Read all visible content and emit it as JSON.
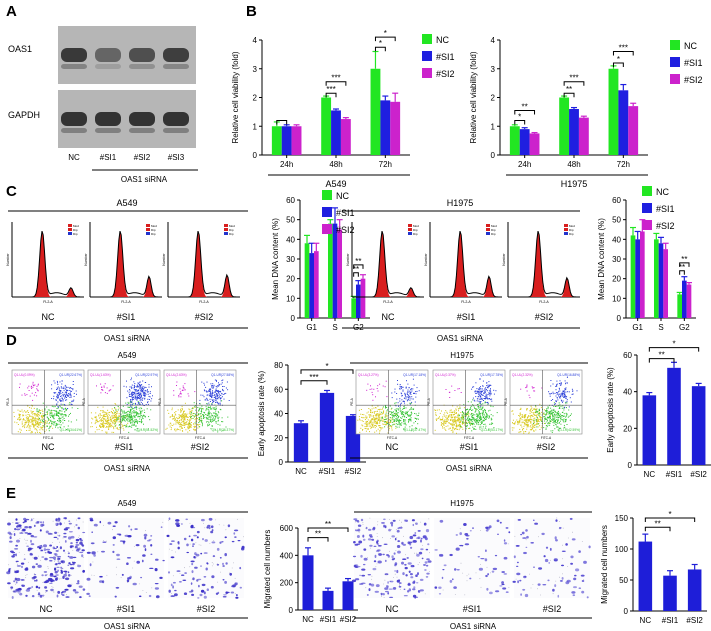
{
  "colors": {
    "nc": "#22e622",
    "si1": "#1f1fe0",
    "si2": "#cc22cc",
    "red": "#d81e1e",
    "blot_bg": "#b6b6b6",
    "bar_blue": "#1e1ed8"
  },
  "panel_letters": [
    "A",
    "B",
    "C",
    "D",
    "E"
  ],
  "panel_a": {
    "bands": [
      "OAS1",
      "GAPDH"
    ],
    "lanes": [
      "NC",
      "#SI1",
      "#SI2",
      "#SI3"
    ],
    "group_label": "OAS1 siRNA",
    "oas1_intensity": [
      0.85,
      0.45,
      0.65,
      0.8
    ],
    "gapdh_intensity": [
      0.9,
      0.9,
      0.9,
      0.9
    ]
  },
  "chart_data": [
    {
      "id": "B-A549",
      "type": "bar",
      "categories": [
        "24h",
        "48h",
        "72h"
      ],
      "xlabel": "A549",
      "ylabel": "Relative cell viability (fold)",
      "ylim": [
        0,
        4
      ],
      "yticks": [
        "0",
        "1",
        "2",
        "3",
        "4"
      ],
      "series": [
        {
          "name": "NC",
          "values": [
            1.0,
            2.0,
            3.0
          ],
          "errors": [
            0.15,
            0.05,
            0.6
          ]
        },
        {
          "name": "#SI1",
          "values": [
            1.0,
            1.55,
            1.9
          ],
          "errors": [
            0.05,
            0.05,
            0.15
          ]
        },
        {
          "name": "#SI2",
          "values": [
            1.0,
            1.25,
            1.85
          ],
          "errors": [
            0.05,
            0.05,
            0.3
          ]
        }
      ],
      "legend": [
        "NC",
        "#SI1",
        "#SI2"
      ],
      "significance": [
        {
          "cat": 0,
          "a": 0,
          "b": 1,
          "label": "",
          "y": 1.2
        },
        {
          "cat": 1,
          "a": 0,
          "b": 1,
          "label": "***",
          "y": 2.15
        },
        {
          "cat": 1,
          "a": 0,
          "b": 2,
          "label": "***",
          "y": 2.55
        },
        {
          "cat": 2,
          "a": 0,
          "b": 1,
          "label": "*",
          "y": 3.75
        },
        {
          "cat": 2,
          "a": 0,
          "b": 2,
          "label": "*",
          "y": 4.1
        }
      ]
    },
    {
      "id": "B-H1975",
      "type": "bar",
      "categories": [
        "24h",
        "48h",
        "72h"
      ],
      "xlabel": "H1975",
      "ylabel": "Relative cell viability (fold)",
      "ylim": [
        0,
        4
      ],
      "yticks": [
        "0",
        "1",
        "2",
        "3",
        "4"
      ],
      "series": [
        {
          "name": "NC",
          "values": [
            1.0,
            2.0,
            3.0
          ],
          "errors": [
            0.05,
            0.05,
            0.1
          ]
        },
        {
          "name": "#SI1",
          "values": [
            0.9,
            1.6,
            2.25
          ],
          "errors": [
            0.05,
            0.05,
            0.2
          ]
        },
        {
          "name": "#SI2",
          "values": [
            0.75,
            1.3,
            1.7
          ],
          "errors": [
            0.03,
            0.05,
            0.1
          ]
        }
      ],
      "legend": [
        "NC",
        "#SI1",
        "#SI2"
      ],
      "significance": [
        {
          "cat": 0,
          "a": 0,
          "b": 1,
          "label": "*",
          "y": 1.2
        },
        {
          "cat": 0,
          "a": 0,
          "b": 2,
          "label": "**",
          "y": 1.55
        },
        {
          "cat": 1,
          "a": 0,
          "b": 1,
          "label": "**",
          "y": 2.15
        },
        {
          "cat": 1,
          "a": 0,
          "b": 2,
          "label": "***",
          "y": 2.55
        },
        {
          "cat": 2,
          "a": 0,
          "b": 1,
          "label": "*",
          "y": 3.2
        },
        {
          "cat": 2,
          "a": 0,
          "b": 2,
          "label": "***",
          "y": 3.6
        }
      ]
    },
    {
      "id": "C-A549",
      "type": "bar",
      "categories": [
        "G1",
        "S",
        "G2"
      ],
      "xlabel": "",
      "ylabel": "Mean DNA content (%)",
      "ylim": [
        0,
        60
      ],
      "yticks": [
        "0",
        "10",
        "20",
        "30",
        "40",
        "50",
        "60"
      ],
      "series": [
        {
          "name": "NC",
          "values": [
            38,
            48,
            10
          ],
          "errors": [
            4,
            2,
            1
          ]
        },
        {
          "name": "#SI1",
          "values": [
            33,
            48,
            17
          ],
          "errors": [
            5,
            8,
            2
          ]
        },
        {
          "name": "#SI2",
          "values": [
            34,
            45,
            20
          ],
          "errors": [
            4,
            5,
            2
          ]
        }
      ],
      "legend": [
        "NC",
        "#SI1",
        "#SI2"
      ],
      "significance": [
        {
          "cat": 2,
          "a": 0,
          "b": 1,
          "label": "**",
          "y": 23
        },
        {
          "cat": 2,
          "a": 0,
          "b": 2,
          "label": "**",
          "y": 27
        }
      ]
    },
    {
      "id": "C-H1975",
      "type": "bar",
      "categories": [
        "G1",
        "S",
        "G2"
      ],
      "xlabel": "",
      "ylabel": "Mean DNA content (%)",
      "ylim": [
        0,
        60
      ],
      "yticks": [
        "0",
        "10",
        "20",
        "30",
        "40",
        "50",
        "60"
      ],
      "series": [
        {
          "name": "NC",
          "values": [
            42,
            40,
            12
          ],
          "errors": [
            4,
            3,
            1
          ]
        },
        {
          "name": "#SI1",
          "values": [
            40,
            38,
            19
          ],
          "errors": [
            4,
            3,
            2
          ]
        },
        {
          "name": "#SI2",
          "values": [
            44,
            35,
            17
          ],
          "errors": [
            6,
            3,
            1
          ]
        }
      ],
      "legend": [
        "NC",
        "#SI1",
        "#SI2"
      ],
      "significance": [
        {
          "cat": 2,
          "a": 0,
          "b": 1,
          "label": "**",
          "y": 24
        },
        {
          "cat": 2,
          "a": 0,
          "b": 2,
          "label": "**",
          "y": 28
        }
      ]
    },
    {
      "id": "D-A549",
      "type": "bar",
      "categories": [
        "NC",
        "#SI1",
        "#SI2"
      ],
      "ylabel": "Early apoptosis rate (%)",
      "ylim": [
        0,
        80
      ],
      "yticks": [
        "0",
        "20",
        "40",
        "60",
        "80"
      ],
      "values": [
        32,
        57,
        38
      ],
      "errors": [
        2,
        2,
        1
      ],
      "significance": [
        {
          "a": 0,
          "b": 1,
          "label": "***",
          "y": 67
        },
        {
          "a": 0,
          "b": 2,
          "label": "*",
          "y": 76
        }
      ]
    },
    {
      "id": "D-H1975",
      "type": "bar",
      "categories": [
        "NC",
        "#SI1",
        "#SI2"
      ],
      "ylabel": "Early apoptosis rate (%)",
      "ylim": [
        0,
        60
      ],
      "yticks": [
        "0",
        "20",
        "40",
        "60"
      ],
      "values": [
        38,
        53,
        43
      ],
      "errors": [
        1.5,
        3,
        1.5
      ],
      "significance": [
        {
          "a": 0,
          "b": 1,
          "label": "**",
          "y": 58
        },
        {
          "a": 0,
          "b": 2,
          "label": "*",
          "y": 64
        }
      ]
    },
    {
      "id": "E-A549",
      "type": "bar",
      "categories": [
        "NC",
        "#SI1",
        "#SI2"
      ],
      "ylabel": "Migrated cell numbers",
      "ylim": [
        0,
        600
      ],
      "yticks": [
        "0",
        "200",
        "400",
        "600"
      ],
      "values": [
        400,
        140,
        210
      ],
      "errors": [
        55,
        20,
        20
      ],
      "significance": [
        {
          "a": 0,
          "b": 1,
          "label": "**",
          "y": 530
        },
        {
          "a": 0,
          "b": 2,
          "label": "**",
          "y": 600
        }
      ]
    },
    {
      "id": "E-H1975",
      "type": "bar",
      "categories": [
        "NC",
        "#SI1",
        "#SI2"
      ],
      "ylabel": "Migrated cell numbers",
      "ylim": [
        0,
        150
      ],
      "yticks": [
        "0",
        "50",
        "100",
        "150"
      ],
      "values": [
        112,
        57,
        67
      ],
      "errors": [
        12,
        8,
        8
      ],
      "significance": [
        {
          "a": 0,
          "b": 1,
          "label": "**",
          "y": 135
        },
        {
          "a": 0,
          "b": 2,
          "label": "*",
          "y": 150
        }
      ]
    }
  ],
  "panel_c": {
    "a549_title": "A549",
    "h1975_title": "H1975",
    "labels": [
      "NC",
      "#SI1",
      "#SI2"
    ],
    "group_label": "OAS1 siRNA",
    "fl_xlabel": "FL2-A",
    "fl_ylabel": "Number",
    "legend": [
      "Mod",
      "Dip",
      "Dip"
    ]
  },
  "panel_d": {
    "a549_title": "A549",
    "h1975_title": "H1975",
    "labels": [
      "NC",
      "#SI1",
      "#SI2"
    ],
    "group_label": "OAS1 siRNA",
    "a549_quadrants": [
      [
        "Q1-UL(0.09%)",
        "Q1-UR(22.67%)",
        "Q1-LR(34.61%)"
      ],
      [
        "Q1-UL(1.63%)",
        "Q1-UR(22.97%)",
        "Q1-LR(51.52%)"
      ],
      [
        "Q1-UL(2.63%)",
        "Q1-UR(27.58%)",
        "Q1-LR(36.37%)"
      ]
    ],
    "h1975_quadrants": [
      [
        "Q1-UL(3.27%)",
        "Q1-UR(17.18%)",
        "Q1-LR(37.47%)"
      ],
      [
        "Q1-UL(0.37%)",
        "Q1-UR(17.78%)",
        "Q1-LR(53.17%)"
      ],
      [
        "Q1-UL(2.32%)",
        "Q1-UR(16.88%)",
        "Q1-LR(42.59%)"
      ]
    ],
    "axis_x": "FITC-A",
    "axis_y": "PE-A"
  },
  "panel_e": {
    "a549_title": "A549",
    "h1975_title": "H1975",
    "labels": [
      "NC",
      "#SI1",
      "#SI2"
    ],
    "group_label": "OAS1 siRNA",
    "a549_density": [
      260,
      70,
      120
    ],
    "h1975_density": [
      180,
      60,
      70
    ]
  }
}
